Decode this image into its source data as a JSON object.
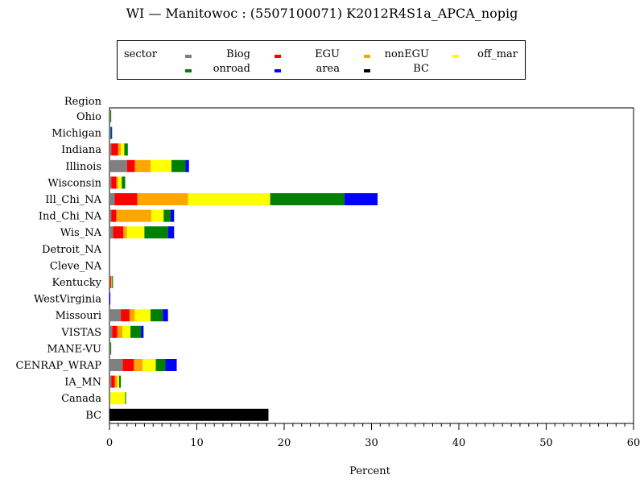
{
  "chart_data": {
    "type": "bar",
    "orientation": "horizontal",
    "stacked": true,
    "title": "WI  —  Manitowoc  :  (5507100071)  K2012R4S1a_APCA_nopig",
    "xlabel": "Percent",
    "ylabel": "Region",
    "xlim": [
      0,
      60
    ],
    "xticks": [
      0,
      10,
      20,
      30,
      40,
      50,
      60
    ],
    "legend_title": "sector",
    "categories": [
      "Ohio",
      "Michigan",
      "Indiana",
      "Illinois",
      "Wisconsin",
      "Ill_Chi_NA",
      "Ind_Chi_NA",
      "Wis_NA",
      "Detroit_NA",
      "Cleve_NA",
      "Kentucky",
      "WestVirginia",
      "Missouri",
      "VISTAS",
      "MANE-VU",
      "CENRAP_WRAP",
      "IA_MN",
      "Canada",
      "BC"
    ],
    "series": [
      {
        "name": "Biog",
        "color": "#808080",
        "values": [
          0.1,
          0.1,
          0.2,
          2.0,
          0.2,
          0.6,
          0.2,
          0.4,
          0,
          0,
          0.1,
          0,
          1.3,
          0.3,
          0.1,
          1.5,
          0.2,
          0.1,
          0
        ]
      },
      {
        "name": "EGU",
        "color": "#ff0000",
        "values": [
          0,
          0,
          0.8,
          0.9,
          0.6,
          2.6,
          0.6,
          1.2,
          0,
          0,
          0.1,
          0,
          1.0,
          0.6,
          0,
          1.3,
          0.4,
          0,
          0
        ]
      },
      {
        "name": "nonEGU",
        "color": "#ffa500",
        "values": [
          0,
          0,
          0.3,
          1.8,
          0.2,
          5.8,
          4.0,
          0.4,
          0,
          0,
          0.1,
          0,
          0.6,
          0.6,
          0,
          1.0,
          0.3,
          0,
          0
        ]
      },
      {
        "name": "off_mar",
        "color": "#ffff00",
        "values": [
          0,
          0,
          0.4,
          2.4,
          0.4,
          9.4,
          1.4,
          2.0,
          0,
          0,
          0,
          0,
          1.8,
          0.9,
          0,
          1.5,
          0.2,
          1.7,
          0
        ]
      },
      {
        "name": "onroad",
        "color": "#008000",
        "values": [
          0.1,
          0.1,
          0.4,
          1.6,
          0.4,
          8.5,
          0.8,
          2.7,
          0,
          0,
          0.1,
          0,
          1.4,
          1.2,
          0.1,
          1.1,
          0.2,
          0.1,
          0
        ]
      },
      {
        "name": "area",
        "color": "#0000ff",
        "values": [
          0,
          0.1,
          0,
          0.4,
          0,
          3.8,
          0.4,
          0.7,
          0,
          0,
          0,
          0.1,
          0.6,
          0.3,
          0,
          1.3,
          0,
          0,
          0
        ]
      },
      {
        "name": "BC",
        "color": "#000000",
        "values": [
          0,
          0,
          0,
          0,
          0,
          0,
          0,
          0,
          0,
          0,
          0,
          0,
          0,
          0,
          0,
          0,
          0,
          0,
          18.2
        ]
      }
    ]
  }
}
